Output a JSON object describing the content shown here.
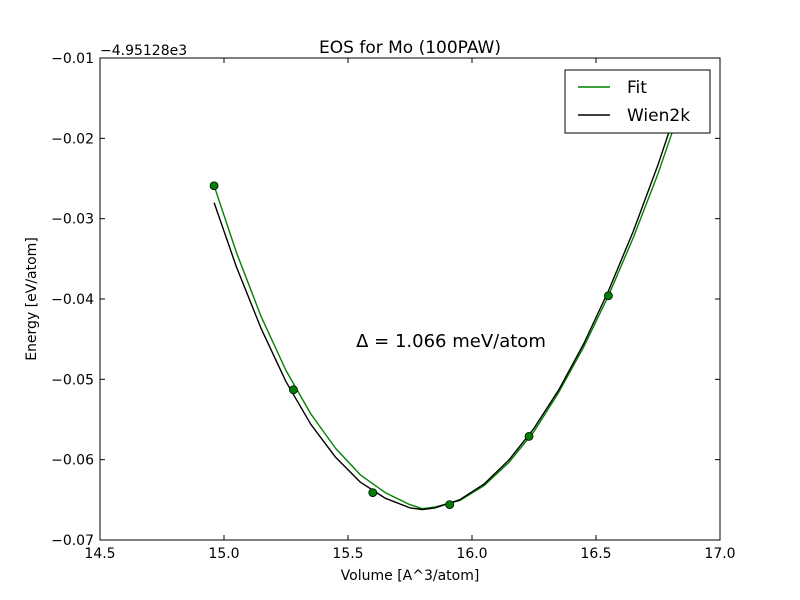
{
  "chart_data": {
    "type": "line",
    "title": "EOS for Mo (100PAW)",
    "xlabel": "Volume [A^3/atom]",
    "ylabel": "Energy [eV/atom]",
    "y_offset_label": "−4.95128e3",
    "xlim": [
      14.5,
      17.0
    ],
    "ylim": [
      -0.07,
      -0.01
    ],
    "x_ticks": [
      14.5,
      15.0,
      15.5,
      16.0,
      16.5,
      17.0
    ],
    "x_tick_labels": [
      "14.5",
      "15.0",
      "15.5",
      "16.0",
      "16.5",
      "17.0"
    ],
    "y_ticks": [
      -0.07,
      -0.06,
      -0.05,
      -0.04,
      -0.03,
      -0.02,
      -0.01
    ],
    "y_tick_labels": [
      "−0.07",
      "−0.06",
      "−0.05",
      "−0.04",
      "−0.03",
      "−0.02",
      "−0.01"
    ],
    "grid": false,
    "legend_position": "top-right",
    "annotation": "Δ = 1.066 meV/atom",
    "points": {
      "x": [
        14.96,
        15.28,
        15.6,
        15.91,
        16.23,
        16.55
      ],
      "y": [
        -0.0259,
        -0.0513,
        -0.0641,
        -0.0656,
        -0.0571,
        -0.0396
      ],
      "color": "#008000"
    },
    "series": [
      {
        "name": "Fit",
        "color": "#008000",
        "x": [
          14.96,
          15.05,
          15.15,
          15.25,
          15.35,
          15.45,
          15.55,
          15.65,
          15.75,
          15.8,
          15.85,
          15.95,
          16.05,
          16.15,
          16.25,
          16.35,
          16.45,
          16.55,
          16.65,
          16.75,
          16.81
        ],
        "y": [
          -0.0259,
          -0.0342,
          -0.0422,
          -0.0489,
          -0.0543,
          -0.0586,
          -0.0619,
          -0.0641,
          -0.0656,
          -0.0661,
          -0.0659,
          -0.0651,
          -0.0632,
          -0.0603,
          -0.0565,
          -0.0516,
          -0.046,
          -0.0396,
          -0.0324,
          -0.0244,
          -0.019
        ]
      },
      {
        "name": "Wien2k",
        "color": "#000000",
        "x": [
          14.96,
          15.05,
          15.15,
          15.25,
          15.35,
          15.45,
          15.55,
          15.65,
          15.75,
          15.8,
          15.85,
          15.95,
          16.05,
          16.15,
          16.25,
          16.35,
          16.45,
          16.55,
          16.65,
          16.75,
          16.84
        ],
        "y": [
          -0.028,
          -0.036,
          -0.0437,
          -0.0503,
          -0.0556,
          -0.0597,
          -0.0628,
          -0.0648,
          -0.066,
          -0.0662,
          -0.066,
          -0.065,
          -0.063,
          -0.06,
          -0.0561,
          -0.0513,
          -0.0456,
          -0.039,
          -0.0316,
          -0.0233,
          -0.015
        ]
      }
    ]
  }
}
